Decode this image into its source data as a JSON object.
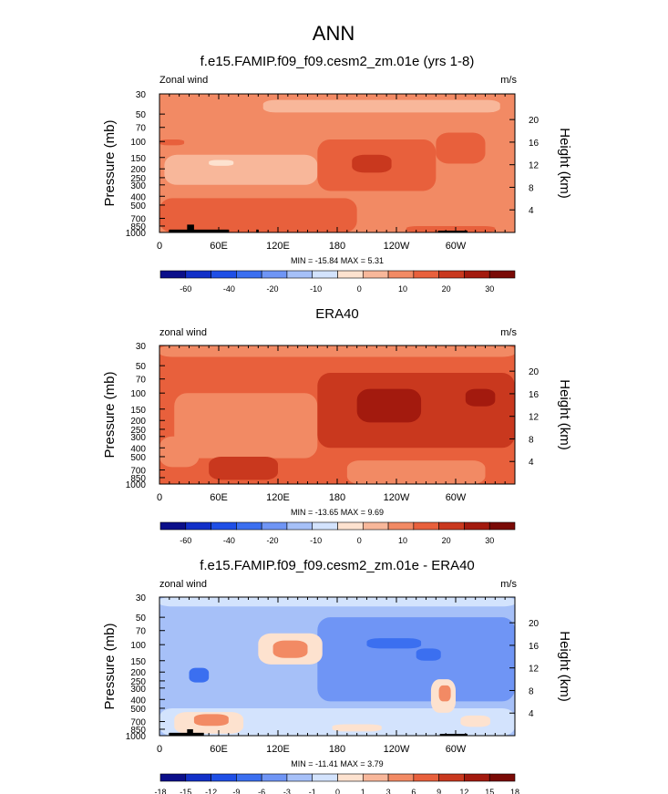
{
  "figure": {
    "title": "ANN"
  },
  "colors": {
    "frame": "#000000",
    "land": "#000000",
    "palette_full": [
      "#0b0f8a",
      "#1230c8",
      "#1f4fe6",
      "#3b6ff0",
      "#6f95f5",
      "#a6c0f8",
      "#d3e3fd",
      "#fde2cf",
      "#f8b79a",
      "#f28a64",
      "#e8603c",
      "#c9381e",
      "#a31a0e",
      "#7a0a06"
    ],
    "palette_diff": [
      "#0b0f8a",
      "#1230c8",
      "#1f4fe6",
      "#3b6ff0",
      "#6f95f5",
      "#a6c0f8",
      "#d3e3fd",
      "#fde2cf",
      "#f8b79a",
      "#f28a64",
      "#e8603c",
      "#c9381e",
      "#a31a0e",
      "#7a0a06"
    ]
  },
  "panels": [
    {
      "title": "f.e15.FAMIP.f09_f09.cesm2_zm.01e (yrs 1-8)",
      "left_label": "Zonal wind",
      "right_label": "m/s",
      "stats": "MIN = -15.84  MAX =  5.31",
      "colorbar_labels": [
        "-60",
        "-40",
        "-20",
        "-10",
        "0",
        "10",
        "20",
        "30"
      ],
      "colorbar_levels": [
        -70,
        -60,
        -50,
        -40,
        -30,
        -20,
        -15,
        -10,
        -5,
        0,
        5,
        10,
        15,
        20,
        25,
        30,
        35
      ]
    },
    {
      "title": "ERA40",
      "left_label": "zonal wind",
      "right_label": "m/s",
      "stats": "MIN = -13.65  MAX =  9.69",
      "colorbar_labels": [
        "-60",
        "-40",
        "-20",
        "-10",
        "0",
        "10",
        "20",
        "30"
      ],
      "colorbar_levels": [
        -70,
        -60,
        -50,
        -40,
        -30,
        -20,
        -15,
        -10,
        -5,
        0,
        5,
        10,
        15,
        20,
        25,
        30,
        35
      ]
    },
    {
      "title": "f.e15.FAMIP.f09_f09.cesm2_zm.01e - ERA40",
      "left_label": "zonal wind",
      "right_label": "m/s",
      "stats": "MIN = -11.41  MAX =  3.79",
      "colorbar_labels": [
        "-18",
        "-15",
        "-12",
        "-9",
        "-6",
        "-3",
        "-1",
        "0",
        "1",
        "3",
        "6",
        "9",
        "12",
        "15",
        "18"
      ]
    }
  ],
  "chart_data": [
    {
      "type": "heatmap",
      "title": "f.e15.FAMIP.f09_f09.cesm2_zm.01e (yrs 1-8)",
      "xlabel": "",
      "ylabel": "Pressure (mb)",
      "y2label": "Height (km)",
      "x_ticks": [
        "0",
        "60E",
        "120E",
        "180",
        "120W",
        "60W"
      ],
      "x_tick_values": [
        0,
        60,
        120,
        180,
        240,
        300
      ],
      "xlim": [
        0,
        360
      ],
      "y_ticks": [
        "30",
        "50",
        "70",
        "100",
        "150",
        "200",
        "250",
        "300",
        "400",
        "500",
        "700",
        "850",
        "1000"
      ],
      "y_tick_values": [
        30,
        50,
        70,
        100,
        150,
        200,
        250,
        300,
        400,
        500,
        700,
        850,
        1000
      ],
      "ylim": [
        1000,
        30
      ],
      "y_scale": "log",
      "y2_ticks": [
        "20",
        "16",
        "12",
        "8",
        "4"
      ],
      "y2_tick_values": [
        20,
        16,
        12,
        8,
        4
      ],
      "min": -15.84,
      "max": 5.31,
      "levels": [
        -70,
        -60,
        -50,
        -40,
        -30,
        -20,
        -15,
        -10,
        -5,
        0,
        5,
        10,
        15,
        20,
        25,
        30,
        35
      ],
      "colorbar_labels": [
        "-60",
        "-40",
        "-20",
        "-10",
        "0",
        "10",
        "20",
        "30"
      ],
      "regions": [
        {
          "lon": 0,
          "lon2": 360,
          "p": 30,
          "p2": 1000,
          "value": -2
        },
        {
          "lon": 5,
          "lon2": 160,
          "p": 140,
          "p2": 300,
          "value": -7
        },
        {
          "lon": 50,
          "lon2": 75,
          "p": 160,
          "p2": 185,
          "value": -11
        },
        {
          "lon": 105,
          "lon2": 345,
          "p": 35,
          "p2": 48,
          "value": -7
        },
        {
          "lon": 0,
          "lon2": 360,
          "p": 30,
          "p2": 33,
          "value": -2
        },
        {
          "lon": 160,
          "lon2": 280,
          "p": 95,
          "p2": 350,
          "value": 2
        },
        {
          "lon": 280,
          "lon2": 330,
          "p": 80,
          "p2": 175,
          "value": 2
        },
        {
          "lon": 195,
          "lon2": 235,
          "p": 140,
          "p2": 220,
          "value": 6
        },
        {
          "lon": 35,
          "lon2": 120,
          "p": 560,
          "p2": 950,
          "value": 4
        },
        {
          "lon": 0,
          "lon2": 200,
          "p": 420,
          "p2": 1000,
          "value": 2
        },
        {
          "lon": 250,
          "lon2": 340,
          "p": 850,
          "p2": 1000,
          "value": 2
        },
        {
          "lon": 0,
          "lon2": 25,
          "p": 95,
          "p2": 110,
          "value": 2
        }
      ],
      "land": [
        {
          "lon": 10,
          "lon2": 70,
          "p": 930,
          "p2": 1000
        },
        {
          "lon": 28,
          "lon2": 35,
          "p": 820,
          "p2": 1000
        },
        {
          "lon": 98,
          "lon2": 100,
          "p": 930,
          "p2": 1000
        },
        {
          "lon": 282,
          "lon2": 312,
          "p": 955,
          "p2": 1000
        }
      ],
      "stats": "MIN = -15.84  MAX =  5.31"
    },
    {
      "type": "heatmap",
      "title": "ERA40",
      "xlabel": "",
      "ylabel": "Pressure (mb)",
      "y2label": "Height (km)",
      "x_ticks": [
        "0",
        "60E",
        "120E",
        "180",
        "120W",
        "60W"
      ],
      "x_tick_values": [
        0,
        60,
        120,
        180,
        240,
        300
      ],
      "xlim": [
        0,
        360
      ],
      "y_ticks": [
        "30",
        "50",
        "70",
        "100",
        "150",
        "200",
        "250",
        "300",
        "400",
        "500",
        "700",
        "850",
        "1000"
      ],
      "y_tick_values": [
        30,
        50,
        70,
        100,
        150,
        200,
        250,
        300,
        400,
        500,
        700,
        850,
        1000
      ],
      "ylim": [
        1000,
        30
      ],
      "y_scale": "log",
      "y2_ticks": [
        "20",
        "16",
        "12",
        "8",
        "4"
      ],
      "y2_tick_values": [
        20,
        16,
        12,
        8,
        4
      ],
      "min": -13.65,
      "max": 9.69,
      "levels": [
        -70,
        -60,
        -50,
        -40,
        -30,
        -20,
        -15,
        -10,
        -5,
        0,
        5,
        10,
        15,
        20,
        25,
        30,
        35
      ],
      "colorbar_labels": [
        "-60",
        "-40",
        "-20",
        "-10",
        "0",
        "10",
        "20",
        "30"
      ],
      "regions": [
        {
          "lon": 0,
          "lon2": 360,
          "p": 30,
          "p2": 1000,
          "value": 2
        },
        {
          "lon": 0,
          "lon2": 360,
          "p": 30,
          "p2": 40,
          "value": -2
        },
        {
          "lon": 15,
          "lon2": 160,
          "p": 100,
          "p2": 520,
          "value": -2
        },
        {
          "lon": 0,
          "lon2": 40,
          "p": 300,
          "p2": 650,
          "value": -2
        },
        {
          "lon": 160,
          "lon2": 360,
          "p": 60,
          "p2": 400,
          "value": 6
        },
        {
          "lon": 200,
          "lon2": 265,
          "p": 90,
          "p2": 210,
          "value": 11
        },
        {
          "lon": 310,
          "lon2": 340,
          "p": 90,
          "p2": 140,
          "value": 11
        },
        {
          "lon": 190,
          "lon2": 330,
          "p": 550,
          "p2": 1000,
          "value": -2
        },
        {
          "lon": 50,
          "lon2": 120,
          "p": 500,
          "p2": 900,
          "value": 6
        },
        {
          "lon": 360,
          "lon2": 362,
          "p": 30,
          "p2": 31,
          "value": 0
        }
      ],
      "land": [],
      "stats": "MIN = -13.65  MAX =  9.69"
    },
    {
      "type": "heatmap",
      "title": "f.e15.FAMIP.f09_f09.cesm2_zm.01e - ERA40",
      "xlabel": "",
      "ylabel": "Pressure (mb)",
      "y2label": "Height (km)",
      "x_ticks": [
        "0",
        "60E",
        "120E",
        "180",
        "120W",
        "60W"
      ],
      "x_tick_values": [
        0,
        60,
        120,
        180,
        240,
        300
      ],
      "xlim": [
        0,
        360
      ],
      "y_ticks": [
        "30",
        "50",
        "70",
        "100",
        "150",
        "200",
        "250",
        "300",
        "400",
        "500",
        "700",
        "850",
        "1000"
      ],
      "y_tick_values": [
        30,
        50,
        70,
        100,
        150,
        200,
        250,
        300,
        400,
        500,
        700,
        850,
        1000
      ],
      "ylim": [
        1000,
        30
      ],
      "y_scale": "log",
      "y2_ticks": [
        "20",
        "16",
        "12",
        "8",
        "4"
      ],
      "y2_tick_values": [
        20,
        16,
        12,
        8,
        4
      ],
      "min": -11.41,
      "max": 3.79,
      "levels": [
        -18,
        -15,
        -12,
        -9,
        -6,
        -3,
        -1,
        0,
        1,
        3,
        6,
        9,
        12,
        15,
        18
      ],
      "colorbar_labels": [
        "-18",
        "-15",
        "-12",
        "-9",
        "-6",
        "-3",
        "-1",
        "0",
        "1",
        "3",
        "6",
        "9",
        "12",
        "15",
        "18"
      ],
      "regions": [
        {
          "lon": 0,
          "lon2": 360,
          "p": 30,
          "p2": 1000,
          "value": -4
        },
        {
          "lon": 0,
          "lon2": 360,
          "p": 30,
          "p2": 38,
          "value": -2
        },
        {
          "lon": 160,
          "lon2": 360,
          "p": 50,
          "p2": 420,
          "value": -7
        },
        {
          "lon": 210,
          "lon2": 265,
          "p": 85,
          "p2": 110,
          "value": -10
        },
        {
          "lon": 260,
          "lon2": 285,
          "p": 110,
          "p2": 150,
          "value": -10
        },
        {
          "lon": 30,
          "lon2": 50,
          "p": 180,
          "p2": 260,
          "value": -10
        },
        {
          "lon": 100,
          "lon2": 165,
          "p": 75,
          "p2": 165,
          "value": -0.5
        },
        {
          "lon": 115,
          "lon2": 150,
          "p": 90,
          "p2": 140,
          "value": 1.5
        },
        {
          "lon": 0,
          "lon2": 360,
          "p": 500,
          "p2": 1000,
          "value": -2
        },
        {
          "lon": 15,
          "lon2": 85,
          "p": 550,
          "p2": 950,
          "value": -0.5
        },
        {
          "lon": 35,
          "lon2": 70,
          "p": 580,
          "p2": 780,
          "value": 1.5
        },
        {
          "lon": 275,
          "lon2": 300,
          "p": 240,
          "p2": 560,
          "value": -0.5
        },
        {
          "lon": 283,
          "lon2": 295,
          "p": 280,
          "p2": 420,
          "value": 1.5
        },
        {
          "lon": 305,
          "lon2": 335,
          "p": 600,
          "p2": 800,
          "value": -0.5
        },
        {
          "lon": 175,
          "lon2": 225,
          "p": 750,
          "p2": 900,
          "value": -0.5
        }
      ],
      "land": [
        {
          "lon": 10,
          "lon2": 45,
          "p": 930,
          "p2": 1000
        },
        {
          "lon": 28,
          "lon2": 34,
          "p": 850,
          "p2": 1000
        },
        {
          "lon": 284,
          "lon2": 312,
          "p": 955,
          "p2": 1000
        }
      ],
      "stats": "MIN = -11.41  MAX =  3.79"
    }
  ]
}
